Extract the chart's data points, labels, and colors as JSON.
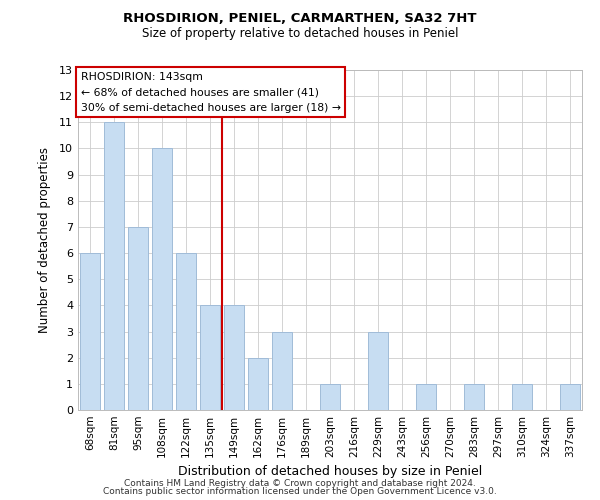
{
  "title": "RHOSDIRION, PENIEL, CARMARTHEN, SA32 7HT",
  "subtitle": "Size of property relative to detached houses in Peniel",
  "xlabel": "Distribution of detached houses by size in Peniel",
  "ylabel": "Number of detached properties",
  "categories": [
    "68sqm",
    "81sqm",
    "95sqm",
    "108sqm",
    "122sqm",
    "135sqm",
    "149sqm",
    "162sqm",
    "176sqm",
    "189sqm",
    "203sqm",
    "216sqm",
    "229sqm",
    "243sqm",
    "256sqm",
    "270sqm",
    "283sqm",
    "297sqm",
    "310sqm",
    "324sqm",
    "337sqm"
  ],
  "values": [
    6,
    11,
    7,
    10,
    6,
    4,
    4,
    2,
    3,
    0,
    1,
    0,
    3,
    0,
    1,
    0,
    1,
    0,
    1,
    0,
    1
  ],
  "bar_color": "#c7ddf2",
  "bar_edge_color": "#a0bcd8",
  "vline_x": 5.5,
  "vline_color": "#cc0000",
  "ylim": [
    0,
    13
  ],
  "yticks": [
    0,
    1,
    2,
    3,
    4,
    5,
    6,
    7,
    8,
    9,
    10,
    11,
    12,
    13
  ],
  "annotation_title": "RHOSDIRION: 143sqm",
  "annotation_line1": "← 68% of detached houses are smaller (41)",
  "annotation_line2": "30% of semi-detached houses are larger (18) →",
  "annotation_box_color": "#ffffff",
  "annotation_box_edge": "#cc0000",
  "footer1": "Contains HM Land Registry data © Crown copyright and database right 2024.",
  "footer2": "Contains public sector information licensed under the Open Government Licence v3.0.",
  "background_color": "#ffffff",
  "grid_color": "#cccccc"
}
